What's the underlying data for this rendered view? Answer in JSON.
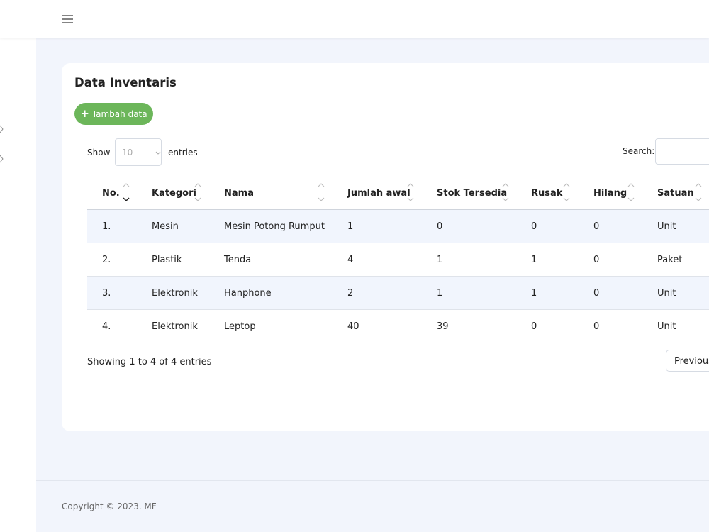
{
  "header": {
    "menu_icon": true
  },
  "card": {
    "title": "Data Inventaris",
    "add_button": "Tambah data",
    "length": {
      "show": "Show",
      "value": "10",
      "entries": "entries"
    },
    "search": {
      "label": "Search:"
    },
    "table": {
      "columns": [
        "No.",
        "Kategori",
        "Nama",
        "Jumlah awal",
        "Stok Tersedia",
        "Rusak",
        "Hilang",
        "Satuan"
      ],
      "rows": [
        [
          "1.",
          "Mesin",
          "Mesin Potong Rumput",
          1,
          0,
          0,
          0,
          "Unit"
        ],
        [
          "2.",
          "Plastik",
          "Tenda",
          4,
          1,
          1,
          0,
          "Paket"
        ],
        [
          "3.",
          "Elektronik",
          "Hanphone",
          2,
          1,
          1,
          0,
          "Unit"
        ],
        [
          "4.",
          "Elektronik",
          "Leptop",
          40,
          39,
          0,
          0,
          "Unit"
        ]
      ]
    },
    "info": "Showing 1 to 4 of 4 entries",
    "pagination": {
      "previous": "Previous"
    }
  },
  "footer": {
    "copyright": "Copyright © 2023. MF"
  }
}
